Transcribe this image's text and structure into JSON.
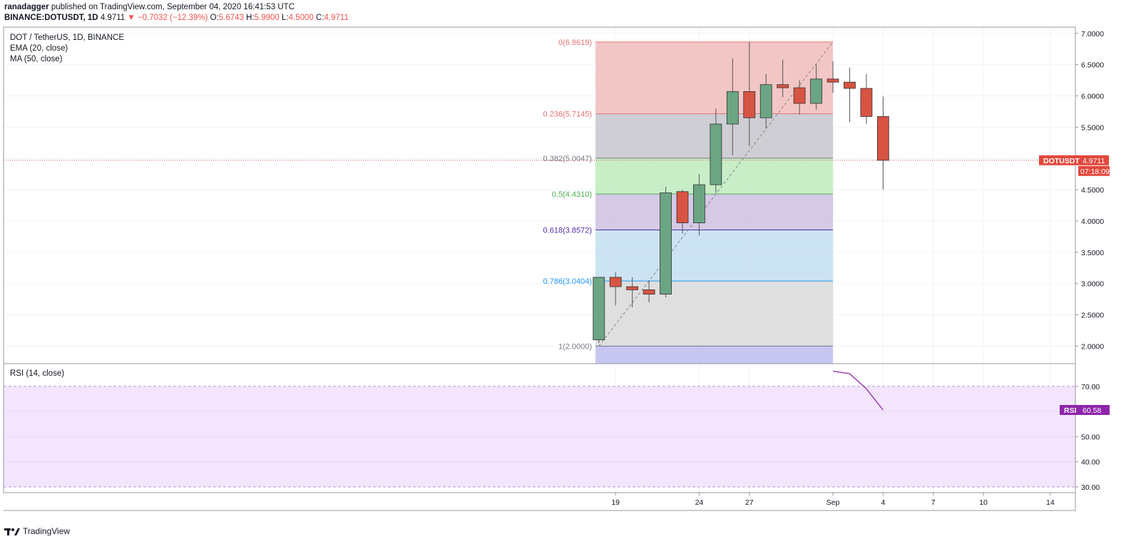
{
  "header": {
    "publisher": "ranadagger",
    "published_text": "published on TradingView.com, September 04, 2020 16:41:53 UTC",
    "symbol": "BINANCE:DOTUSDT, 1D",
    "last": "4.9711",
    "change_arrow": "▼",
    "change": "−0.7032 (−12.39%)",
    "o_label": "O:",
    "o": "5.6743",
    "h_label": "H:",
    "h": "5.9900",
    "l_label": "L:",
    "l": "4.5000",
    "c_label": "C:",
    "c": "4.9711"
  },
  "legend": {
    "title": "DOT / TetherUS, 1D, BINANCE",
    "ema": "EMA (20, close)",
    "ma": "MA (50, close)",
    "rsi": "RSI (14, close)"
  },
  "footer": {
    "brand": "TradingView",
    "logo_icon": "tradingview-logo-icon"
  },
  "colors": {
    "up": "#6ba583",
    "down": "#d75442",
    "rsi": "#8e24aa",
    "price_tag": "#e2483d"
  },
  "chart_data": {
    "type": "candlestick",
    "title": "DOT / TetherUS, 1D, BINANCE",
    "price_axis": {
      "ticks": [
        "7.0000",
        "6.5000",
        "6.0000",
        "5.5000",
        "5.0000",
        "4.5000",
        "4.0000",
        "3.5000",
        "3.0000",
        "2.5000",
        "2.0000"
      ],
      "range": [
        1.72,
        7.1
      ]
    },
    "time_axis": {
      "ticks": [
        {
          "label": "19",
          "day": 19
        },
        {
          "label": "24",
          "day": 24
        },
        {
          "label": "27",
          "day": 27
        },
        {
          "label": "Sep",
          "day": 32
        },
        {
          "label": "4",
          "day": 35
        },
        {
          "label": "7",
          "day": 38
        },
        {
          "label": "10",
          "day": 41
        },
        {
          "label": "14",
          "day": 45
        }
      ],
      "range": [
        -17.6,
        46.5
      ]
    },
    "candles": [
      {
        "day": 18,
        "o": 2.1,
        "h": 3.1,
        "l": 2.05,
        "c": 3.1
      },
      {
        "day": 19,
        "o": 3.1,
        "h": 3.18,
        "l": 2.65,
        "c": 2.95
      },
      {
        "day": 20,
        "o": 2.95,
        "h": 3.1,
        "l": 2.62,
        "c": 2.9
      },
      {
        "day": 21,
        "o": 2.9,
        "h": 3.05,
        "l": 2.7,
        "c": 2.83
      },
      {
        "day": 22,
        "o": 2.83,
        "h": 4.55,
        "l": 2.78,
        "c": 4.45
      },
      {
        "day": 23,
        "o": 4.47,
        "h": 4.5,
        "l": 3.8,
        "c": 3.97
      },
      {
        "day": 24,
        "o": 3.97,
        "h": 4.75,
        "l": 3.77,
        "c": 4.58
      },
      {
        "day": 25,
        "o": 4.58,
        "h": 5.8,
        "l": 4.45,
        "c": 5.55
      },
      {
        "day": 26,
        "o": 5.55,
        "h": 6.6,
        "l": 5.05,
        "c": 6.07
      },
      {
        "day": 27,
        "o": 6.07,
        "h": 6.86,
        "l": 5.2,
        "c": 5.65
      },
      {
        "day": 28,
        "o": 5.65,
        "h": 6.35,
        "l": 5.48,
        "c": 6.18
      },
      {
        "day": 29,
        "o": 6.18,
        "h": 6.58,
        "l": 5.98,
        "c": 6.13
      },
      {
        "day": 30,
        "o": 6.13,
        "h": 6.25,
        "l": 5.7,
        "c": 5.88
      },
      {
        "day": 31,
        "o": 5.88,
        "h": 6.5,
        "l": 5.78,
        "c": 6.27
      },
      {
        "day": 32,
        "o": 6.27,
        "h": 6.55,
        "l": 6.05,
        "c": 6.22
      },
      {
        "day": 33,
        "o": 6.22,
        "h": 6.45,
        "l": 5.58,
        "c": 6.12
      },
      {
        "day": 34,
        "o": 6.12,
        "h": 6.35,
        "l": 5.55,
        "c": 5.67
      },
      {
        "day": 35,
        "o": 5.67,
        "h": 5.99,
        "l": 4.5,
        "c": 4.97
      }
    ],
    "fibonacci": {
      "start_day": 17.8,
      "end_day": 32.0,
      "levels": [
        {
          "ratio": "0",
          "price": 6.8619,
          "label": "0(6.8619)",
          "color": "#e57373"
        },
        {
          "ratio": "0.236",
          "price": 5.7145,
          "label": "0.236(5.7145)",
          "color": "#e57373"
        },
        {
          "ratio": "0.382",
          "price": 5.0047,
          "label": "0.382(5.0047)",
          "color": "#787b86"
        },
        {
          "ratio": "0.5",
          "price": 4.431,
          "label": "0.5(4.4310)",
          "color": "#4caf50"
        },
        {
          "ratio": "0.618",
          "price": 3.8572,
          "label": "0.618(3.8572)",
          "color": "#512da8"
        },
        {
          "ratio": "0.786",
          "price": 3.0404,
          "label": "0.786(3.0404)",
          "color": "#2196f3"
        },
        {
          "ratio": "1",
          "price": 2.0,
          "label": "1(2.0000)",
          "color": "#787b86"
        }
      ],
      "zone_colors": [
        "#f2c0c0",
        "#c9c9cf",
        "#c2ecc2",
        "#d0c3e3",
        "#c6e0f2",
        "#dcdcdc",
        "#c1c0f0"
      ],
      "trendline": {
        "from": {
          "day": 18,
          "price": 2.0
        },
        "to": {
          "day": 32,
          "price": 6.8619
        }
      }
    },
    "last_price_label": {
      "symbol": "DOTUSDT",
      "value": "4.9711",
      "countdown": "07:18:09"
    },
    "rsi": {
      "ticks": [
        "70.00",
        "60.00",
        "50.00",
        "40.00",
        "30.00"
      ],
      "range": [
        28,
        79
      ],
      "band": [
        30,
        70
      ],
      "points": [
        {
          "day": 32,
          "v": 76.0
        },
        {
          "day": 33,
          "v": 75.0
        },
        {
          "day": 34,
          "v": 69.0
        },
        {
          "day": 35,
          "v": 60.58
        }
      ],
      "label": {
        "name": "RSI",
        "value": "60.58"
      }
    }
  }
}
